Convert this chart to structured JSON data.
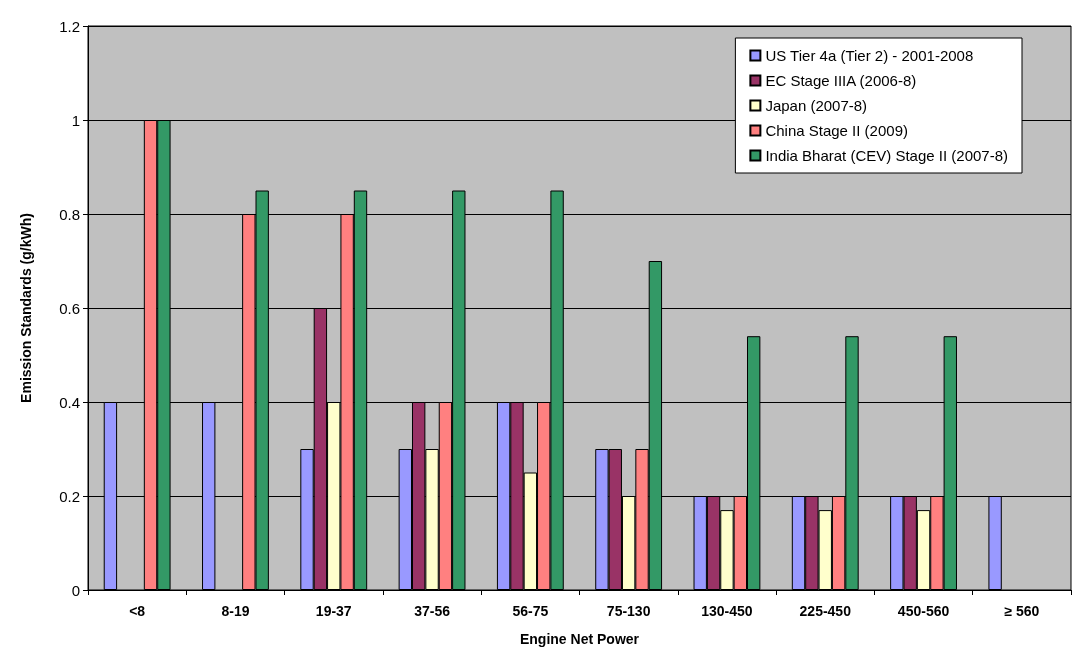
{
  "chart_data": {
    "type": "bar",
    "xlabel": "Engine Net Power",
    "ylabel": "Emission Standards (g/kWh)",
    "categories": [
      "<8",
      "8-19",
      "19-37",
      "37-56",
      "56-75",
      "75-130",
      "130-450",
      "225-450",
      "450-560",
      "≥ 560"
    ],
    "series": [
      {
        "name": "US Tier 4a (Tier 2) - 2001-2008",
        "color": "#9999ff",
        "values": [
          0.4,
          0.4,
          0.3,
          0.3,
          0.4,
          0.3,
          0.2,
          0.2,
          0.2,
          0.2
        ]
      },
      {
        "name": "EC Stage IIIA (2006-8)",
        "color": "#993366",
        "values": [
          null,
          null,
          0.6,
          0.4,
          0.4,
          0.3,
          0.2,
          0.2,
          0.2,
          null
        ]
      },
      {
        "name": "Japan (2007-8)",
        "color": "#ffffcc",
        "values": [
          null,
          null,
          0.4,
          0.3,
          0.25,
          0.2,
          0.17,
          0.17,
          0.17,
          null
        ]
      },
      {
        "name": "China Stage II (2009)",
        "color": "#ff8080",
        "values": [
          1,
          0.8,
          0.8,
          0.4,
          0.4,
          0.3,
          0.2,
          0.2,
          0.2,
          null
        ]
      },
      {
        "name": "India Bharat (CEV) Stage II (2007-8)",
        "color": "#339966",
        "values": [
          1,
          0.85,
          0.85,
          0.85,
          0.85,
          0.7,
          0.54,
          0.54,
          0.54,
          null
        ]
      }
    ],
    "ylim": [
      0,
      1.2
    ],
    "yticks": [
      0,
      0.2,
      0.4,
      0.6,
      0.8,
      1,
      1.2
    ],
    "grid": "y",
    "legend": "top right"
  }
}
